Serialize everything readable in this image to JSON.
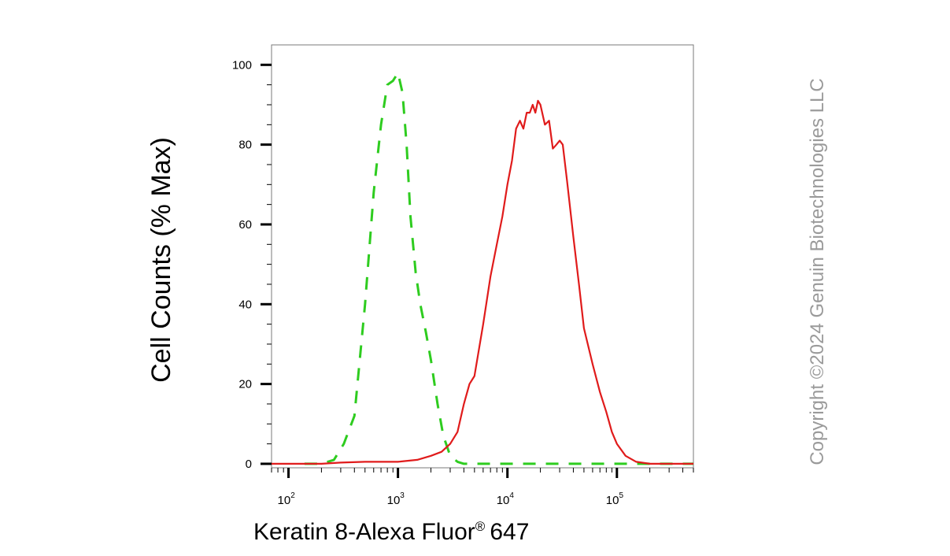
{
  "chart_data": {
    "type": "line",
    "title": "",
    "xlabel": "Keratin 8-Alexa Fluor",
    "xlabel_mark": "®",
    "xlabel_suffix": "647",
    "ylabel": "Cell Counts (% Max)",
    "x_scale": "log",
    "xlim": [
      70,
      500000
    ],
    "ylim": [
      -1,
      105
    ],
    "grid": false,
    "legend": "none",
    "y_ticks": [
      0,
      20,
      40,
      60,
      80,
      100
    ],
    "y_tick_labels": [
      "0",
      "20",
      "40",
      "60",
      "80",
      "100"
    ],
    "x_ticks": [
      {
        "value": 100,
        "base": "10",
        "exp": "2"
      },
      {
        "value": 1000,
        "base": "10",
        "exp": "3"
      },
      {
        "value": 10000,
        "base": "10",
        "exp": "4"
      },
      {
        "value": 100000,
        "base": "10",
        "exp": "5"
      }
    ],
    "series": [
      {
        "color": "#2ecc1f",
        "style": "dashed",
        "x": [
          140,
          200,
          260,
          320,
          400,
          500,
          600,
          700,
          800,
          900,
          1000,
          1100,
          1200,
          1300,
          1450,
          1600,
          1800,
          2000,
          2300,
          2600,
          3000,
          3500,
          4000,
          5000,
          10000,
          100000,
          500000
        ],
        "y": [
          0,
          0,
          1,
          5,
          12,
          40,
          68,
          85,
          95,
          96,
          98,
          93,
          80,
          62,
          48,
          40,
          33,
          26,
          15,
          7,
          2,
          0.5,
          0,
          0,
          0,
          0,
          0
        ]
      },
      {
        "color": "#e01b1b",
        "style": "solid",
        "x": [
          70,
          100,
          200,
          300,
          500,
          800,
          1000,
          1500,
          2000,
          2500,
          3000,
          3500,
          4000,
          4500,
          5000,
          6000,
          7000,
          8000,
          9000,
          10000,
          11000,
          12000,
          13000,
          14000,
          15000,
          16000,
          17000,
          18000,
          19000,
          20000,
          22000,
          24000,
          26000,
          28000,
          30000,
          32000,
          35000,
          40000,
          45000,
          50000,
          60000,
          70000,
          80000,
          90000,
          100000,
          120000,
          150000,
          200000,
          300000,
          500000
        ],
        "y": [
          0,
          0,
          0,
          0.3,
          0.5,
          0.5,
          0.5,
          1,
          2,
          3,
          5,
          8,
          15,
          20,
          22,
          35,
          47,
          55,
          62,
          70,
          76,
          84,
          86,
          84,
          88,
          88,
          90,
          88,
          91,
          90,
          85,
          86,
          79,
          80,
          81,
          80,
          71,
          57,
          45,
          34,
          25,
          18,
          13,
          8,
          5,
          2,
          0.5,
          0,
          0,
          0
        ]
      }
    ]
  },
  "copyright": "Copyright ©2024 Genuin Biotechnologies LLC"
}
